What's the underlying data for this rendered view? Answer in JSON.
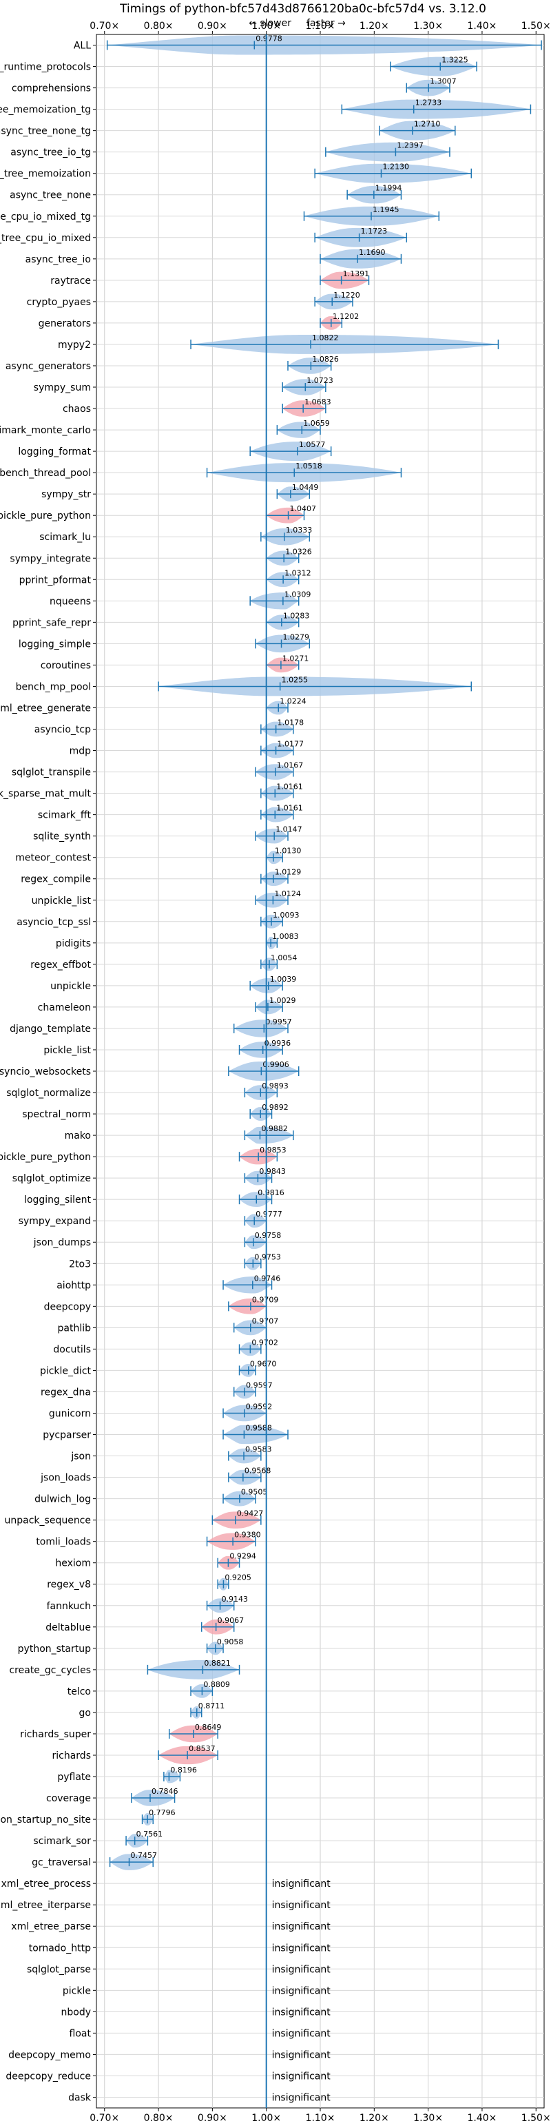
{
  "chart_data": {
    "type": "violin",
    "title": "Timings of python-bfc57d43d8766120ba0c-bfc57d4 vs. 3.12.0",
    "direction_labels": {
      "slower": "← slower",
      "faster": "faster →"
    },
    "xlim": [
      0.685,
      1.515
    ],
    "x_ticks": [
      0.7,
      0.8,
      0.9,
      1.0,
      1.1,
      1.2,
      1.3,
      1.4,
      1.5
    ],
    "x_tick_labels": [
      "0.70×",
      "0.80×",
      "0.90×",
      "1.00×",
      "1.10×",
      "1.20×",
      "1.30×",
      "1.40×",
      "1.50×"
    ],
    "reference_line": 1.0,
    "grid": true,
    "colors": {
      "normal": "#a7c7e7",
      "significant": "#f4a5ae",
      "line": "#1f77b4"
    },
    "benchmarks": [
      {
        "name": "ALL",
        "label": "0.9778",
        "value": 0.9778,
        "min": 0.705,
        "max": 1.51,
        "color": "blue"
      },
      {
        "name": "typing_runtime_protocols",
        "label": "1.3225",
        "value": 1.3225,
        "min": 1.23,
        "max": 1.39,
        "color": "blue"
      },
      {
        "name": "comprehensions",
        "label": "1.3007",
        "value": 1.3007,
        "min": 1.26,
        "max": 1.34,
        "color": "blue"
      },
      {
        "name": "async_tree_memoization_tg",
        "label": "1.2733",
        "value": 1.2733,
        "min": 1.14,
        "max": 1.49,
        "color": "blue"
      },
      {
        "name": "async_tree_none_tg",
        "label": "1.2710",
        "value": 1.271,
        "min": 1.21,
        "max": 1.35,
        "color": "blue"
      },
      {
        "name": "async_tree_io_tg",
        "label": "1.2397",
        "value": 1.2397,
        "min": 1.11,
        "max": 1.34,
        "color": "blue"
      },
      {
        "name": "async_tree_memoization",
        "label": "1.2130",
        "value": 1.213,
        "min": 1.09,
        "max": 1.38,
        "color": "blue"
      },
      {
        "name": "async_tree_none",
        "label": "1.1994",
        "value": 1.1994,
        "min": 1.15,
        "max": 1.25,
        "color": "blue"
      },
      {
        "name": "async_tree_cpu_io_mixed_tg",
        "label": "1.1945",
        "value": 1.1945,
        "min": 1.07,
        "max": 1.32,
        "color": "blue"
      },
      {
        "name": "async_tree_cpu_io_mixed",
        "label": "1.1723",
        "value": 1.1723,
        "min": 1.09,
        "max": 1.26,
        "color": "blue"
      },
      {
        "name": "async_tree_io",
        "label": "1.1690",
        "value": 1.169,
        "min": 1.1,
        "max": 1.25,
        "color": "blue"
      },
      {
        "name": "raytrace",
        "label": "1.1391",
        "value": 1.1391,
        "min": 1.1,
        "max": 1.19,
        "color": "red"
      },
      {
        "name": "crypto_pyaes",
        "label": "1.1220",
        "value": 1.122,
        "min": 1.09,
        "max": 1.16,
        "color": "blue"
      },
      {
        "name": "generators",
        "label": "1.1202",
        "value": 1.1202,
        "min": 1.1,
        "max": 1.14,
        "color": "red"
      },
      {
        "name": "mypy2",
        "label": "1.0822",
        "value": 1.0822,
        "min": 0.86,
        "max": 1.43,
        "color": "blue"
      },
      {
        "name": "async_generators",
        "label": "1.0826",
        "value": 1.0826,
        "min": 1.04,
        "max": 1.12,
        "color": "blue"
      },
      {
        "name": "sympy_sum",
        "label": "1.0723",
        "value": 1.0723,
        "min": 1.03,
        "max": 1.11,
        "color": "blue"
      },
      {
        "name": "chaos",
        "label": "1.0683",
        "value": 1.0683,
        "min": 1.03,
        "max": 1.11,
        "color": "red"
      },
      {
        "name": "scimark_monte_carlo",
        "label": "1.0659",
        "value": 1.0659,
        "min": 1.02,
        "max": 1.1,
        "color": "blue"
      },
      {
        "name": "logging_format",
        "label": "1.0577",
        "value": 1.0577,
        "min": 0.97,
        "max": 1.12,
        "color": "blue"
      },
      {
        "name": "bench_thread_pool",
        "label": "1.0518",
        "value": 1.0518,
        "min": 0.89,
        "max": 1.25,
        "color": "blue"
      },
      {
        "name": "sympy_str",
        "label": "1.0449",
        "value": 1.0449,
        "min": 1.02,
        "max": 1.08,
        "color": "blue"
      },
      {
        "name": "pickle_pure_python",
        "label": "1.0407",
        "value": 1.0407,
        "min": 1.0,
        "max": 1.07,
        "color": "red"
      },
      {
        "name": "scimark_lu",
        "label": "1.0333",
        "value": 1.0333,
        "min": 0.99,
        "max": 1.08,
        "color": "blue"
      },
      {
        "name": "sympy_integrate",
        "label": "1.0326",
        "value": 1.0326,
        "min": 1.0,
        "max": 1.06,
        "color": "blue"
      },
      {
        "name": "pprint_pformat",
        "label": "1.0312",
        "value": 1.0312,
        "min": 1.0,
        "max": 1.06,
        "color": "blue"
      },
      {
        "name": "nqueens",
        "label": "1.0309",
        "value": 1.0309,
        "min": 0.97,
        "max": 1.06,
        "color": "blue"
      },
      {
        "name": "pprint_safe_repr",
        "label": "1.0283",
        "value": 1.0283,
        "min": 1.0,
        "max": 1.06,
        "color": "blue"
      },
      {
        "name": "logging_simple",
        "label": "1.0279",
        "value": 1.0279,
        "min": 0.98,
        "max": 1.08,
        "color": "blue"
      },
      {
        "name": "coroutines",
        "label": "1.0271",
        "value": 1.0271,
        "min": 1.0,
        "max": 1.06,
        "color": "red"
      },
      {
        "name": "bench_mp_pool",
        "label": "1.0255",
        "value": 1.0255,
        "min": 0.8,
        "max": 1.38,
        "color": "blue"
      },
      {
        "name": "xml_etree_generate",
        "label": "1.0224",
        "value": 1.0224,
        "min": 1.0,
        "max": 1.04,
        "color": "blue"
      },
      {
        "name": "asyncio_tcp",
        "label": "1.0178",
        "value": 1.0178,
        "min": 0.99,
        "max": 1.05,
        "color": "blue"
      },
      {
        "name": "mdp",
        "label": "1.0177",
        "value": 1.0177,
        "min": 0.99,
        "max": 1.05,
        "color": "blue"
      },
      {
        "name": "sqlglot_transpile",
        "label": "1.0167",
        "value": 1.0167,
        "min": 0.98,
        "max": 1.05,
        "color": "blue"
      },
      {
        "name": "scimark_sparse_mat_mult",
        "label": "1.0161",
        "value": 1.0161,
        "min": 0.99,
        "max": 1.05,
        "color": "blue"
      },
      {
        "name": "scimark_fft",
        "label": "1.0161",
        "value": 1.0161,
        "min": 0.99,
        "max": 1.05,
        "color": "blue"
      },
      {
        "name": "sqlite_synth",
        "label": "1.0147",
        "value": 1.0147,
        "min": 0.98,
        "max": 1.04,
        "color": "blue"
      },
      {
        "name": "meteor_contest",
        "label": "1.0130",
        "value": 1.013,
        "min": 1.0,
        "max": 1.03,
        "color": "blue"
      },
      {
        "name": "regex_compile",
        "label": "1.0129",
        "value": 1.0129,
        "min": 0.99,
        "max": 1.04,
        "color": "blue"
      },
      {
        "name": "unpickle_list",
        "label": "1.0124",
        "value": 1.0124,
        "min": 0.98,
        "max": 1.04,
        "color": "blue"
      },
      {
        "name": "asyncio_tcp_ssl",
        "label": "1.0093",
        "value": 1.0093,
        "min": 0.99,
        "max": 1.03,
        "color": "blue"
      },
      {
        "name": "pidigits",
        "label": "1.0083",
        "value": 1.0083,
        "min": 1.0,
        "max": 1.02,
        "color": "blue"
      },
      {
        "name": "regex_effbot",
        "label": "1.0054",
        "value": 1.0054,
        "min": 0.99,
        "max": 1.02,
        "color": "blue"
      },
      {
        "name": "unpickle",
        "label": "1.0039",
        "value": 1.0039,
        "min": 0.97,
        "max": 1.03,
        "color": "blue"
      },
      {
        "name": "chameleon",
        "label": "1.0029",
        "value": 1.0029,
        "min": 0.98,
        "max": 1.03,
        "color": "blue"
      },
      {
        "name": "django_template",
        "label": "0.9957",
        "value": 0.9957,
        "min": 0.94,
        "max": 1.04,
        "color": "blue"
      },
      {
        "name": "pickle_list",
        "label": "0.9936",
        "value": 0.9936,
        "min": 0.95,
        "max": 1.03,
        "color": "blue"
      },
      {
        "name": "asyncio_websockets",
        "label": "0.9906",
        "value": 0.9906,
        "min": 0.93,
        "max": 1.06,
        "color": "blue"
      },
      {
        "name": "sqlglot_normalize",
        "label": "0.9893",
        "value": 0.9893,
        "min": 0.96,
        "max": 1.02,
        "color": "blue"
      },
      {
        "name": "spectral_norm",
        "label": "0.9892",
        "value": 0.9892,
        "min": 0.97,
        "max": 1.01,
        "color": "blue"
      },
      {
        "name": "mako",
        "label": "0.9882",
        "value": 0.9882,
        "min": 0.96,
        "max": 1.05,
        "color": "blue"
      },
      {
        "name": "unpickle_pure_python",
        "label": "0.9853",
        "value": 0.9853,
        "min": 0.95,
        "max": 1.02,
        "color": "red"
      },
      {
        "name": "sqlglot_optimize",
        "label": "0.9843",
        "value": 0.9843,
        "min": 0.96,
        "max": 1.01,
        "color": "blue"
      },
      {
        "name": "logging_silent",
        "label": "0.9816",
        "value": 0.9816,
        "min": 0.95,
        "max": 1.01,
        "color": "blue"
      },
      {
        "name": "sympy_expand",
        "label": "0.9777",
        "value": 0.9777,
        "min": 0.96,
        "max": 1.0,
        "color": "blue"
      },
      {
        "name": "json_dumps",
        "label": "0.9758",
        "value": 0.9758,
        "min": 0.96,
        "max": 1.0,
        "color": "blue"
      },
      {
        "name": "2to3",
        "label": "0.9753",
        "value": 0.9753,
        "min": 0.96,
        "max": 0.99,
        "color": "blue"
      },
      {
        "name": "aiohttp",
        "label": "0.9746",
        "value": 0.9746,
        "min": 0.92,
        "max": 1.01,
        "color": "blue"
      },
      {
        "name": "deepcopy",
        "label": "0.9709",
        "value": 0.9709,
        "min": 0.93,
        "max": 1.0,
        "color": "red"
      },
      {
        "name": "pathlib",
        "label": "0.9707",
        "value": 0.9707,
        "min": 0.94,
        "max": 1.0,
        "color": "blue"
      },
      {
        "name": "docutils",
        "label": "0.9702",
        "value": 0.9702,
        "min": 0.95,
        "max": 0.99,
        "color": "blue"
      },
      {
        "name": "pickle_dict",
        "label": "0.9670",
        "value": 0.967,
        "min": 0.95,
        "max": 0.98,
        "color": "blue"
      },
      {
        "name": "regex_dna",
        "label": "0.9597",
        "value": 0.9597,
        "min": 0.94,
        "max": 0.98,
        "color": "blue"
      },
      {
        "name": "gunicorn",
        "label": "0.9592",
        "value": 0.9592,
        "min": 0.92,
        "max": 1.0,
        "color": "blue"
      },
      {
        "name": "pycparser",
        "label": "0.9588",
        "value": 0.9588,
        "min": 0.92,
        "max": 1.04,
        "color": "blue"
      },
      {
        "name": "json",
        "label": "0.9583",
        "value": 0.9583,
        "min": 0.93,
        "max": 0.99,
        "color": "blue"
      },
      {
        "name": "json_loads",
        "label": "0.9568",
        "value": 0.9568,
        "min": 0.93,
        "max": 0.99,
        "color": "blue"
      },
      {
        "name": "dulwich_log",
        "label": "0.9505",
        "value": 0.9505,
        "min": 0.92,
        "max": 0.98,
        "color": "blue"
      },
      {
        "name": "unpack_sequence",
        "label": "0.9427",
        "value": 0.9427,
        "min": 0.9,
        "max": 0.99,
        "color": "red"
      },
      {
        "name": "tomli_loads",
        "label": "0.9380",
        "value": 0.938,
        "min": 0.89,
        "max": 0.98,
        "color": "red"
      },
      {
        "name": "hexiom",
        "label": "0.9294",
        "value": 0.9294,
        "min": 0.91,
        "max": 0.95,
        "color": "red"
      },
      {
        "name": "regex_v8",
        "label": "0.9205",
        "value": 0.9205,
        "min": 0.91,
        "max": 0.93,
        "color": "blue"
      },
      {
        "name": "fannkuch",
        "label": "0.9143",
        "value": 0.9143,
        "min": 0.89,
        "max": 0.94,
        "color": "blue"
      },
      {
        "name": "deltablue",
        "label": "0.9067",
        "value": 0.9067,
        "min": 0.88,
        "max": 0.94,
        "color": "red"
      },
      {
        "name": "python_startup",
        "label": "0.9058",
        "value": 0.9058,
        "min": 0.89,
        "max": 0.92,
        "color": "blue"
      },
      {
        "name": "create_gc_cycles",
        "label": "0.8821",
        "value": 0.8821,
        "min": 0.78,
        "max": 0.95,
        "color": "blue"
      },
      {
        "name": "telco",
        "label": "0.8809",
        "value": 0.8809,
        "min": 0.86,
        "max": 0.9,
        "color": "blue"
      },
      {
        "name": "go",
        "label": "0.8711",
        "value": 0.8711,
        "min": 0.86,
        "max": 0.88,
        "color": "blue"
      },
      {
        "name": "richards_super",
        "label": "0.8649",
        "value": 0.8649,
        "min": 0.82,
        "max": 0.91,
        "color": "red"
      },
      {
        "name": "richards",
        "label": "0.8537",
        "value": 0.8537,
        "min": 0.8,
        "max": 0.91,
        "color": "red"
      },
      {
        "name": "pyflate",
        "label": "0.8196",
        "value": 0.8196,
        "min": 0.81,
        "max": 0.84,
        "color": "blue"
      },
      {
        "name": "coverage",
        "label": "0.7846",
        "value": 0.7846,
        "min": 0.75,
        "max": 0.83,
        "color": "blue"
      },
      {
        "name": "python_startup_no_site",
        "label": "0.7796",
        "value": 0.7796,
        "min": 0.77,
        "max": 0.79,
        "color": "blue"
      },
      {
        "name": "scimark_sor",
        "label": "0.7561",
        "value": 0.7561,
        "min": 0.74,
        "max": 0.78,
        "color": "blue"
      },
      {
        "name": "gc_traversal",
        "label": "0.7457",
        "value": 0.7457,
        "min": 0.71,
        "max": 0.79,
        "color": "blue"
      },
      {
        "name": "xml_etree_process",
        "label": "insignificant"
      },
      {
        "name": "xml_etree_iterparse",
        "label": "insignificant"
      },
      {
        "name": "xml_etree_parse",
        "label": "insignificant"
      },
      {
        "name": "tornado_http",
        "label": "insignificant"
      },
      {
        "name": "sqlglot_parse",
        "label": "insignificant"
      },
      {
        "name": "pickle",
        "label": "insignificant"
      },
      {
        "name": "nbody",
        "label": "insignificant"
      },
      {
        "name": "float",
        "label": "insignificant"
      },
      {
        "name": "deepcopy_memo",
        "label": "insignificant"
      },
      {
        "name": "deepcopy_reduce",
        "label": "insignificant"
      },
      {
        "name": "dask",
        "label": "insignificant"
      }
    ]
  }
}
